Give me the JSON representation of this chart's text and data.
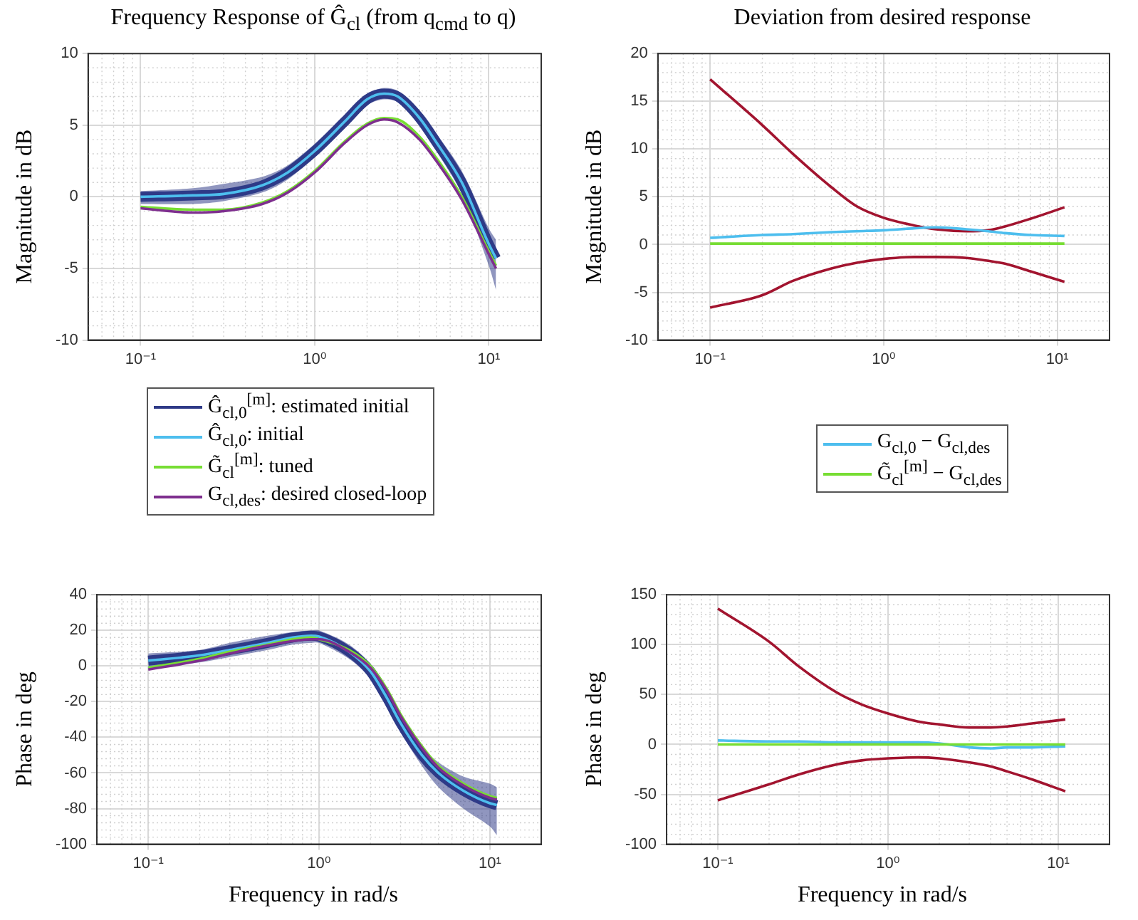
{
  "chart_data": [
    {
      "type": "line",
      "title": "Frequency Response of Ĝ$_{cl}$ (from q$_{cmd}$ to q)",
      "ylabel": "Magnitude in dB",
      "log": "x",
      "grid": true,
      "legend": "bottom",
      "xlim": [
        0.05,
        20
      ],
      "xticks": [
        {
          "value": 0.1,
          "label": "10⁻¹"
        },
        {
          "value": 1,
          "label": "10⁰"
        },
        {
          "value": 10,
          "label": "10¹"
        }
      ],
      "ylim": [
        -10,
        10
      ],
      "yticks": [
        -10,
        -5,
        0,
        5,
        10
      ],
      "x": [
        0.1,
        0.2,
        0.3,
        0.5,
        0.7,
        1,
        1.5,
        2,
        2.5,
        3,
        4,
        5,
        7,
        10,
        11
      ],
      "series": [
        {
          "name": "Ĝ$_{cl,0}$$^{[m]}$: estimated initial",
          "color": "#2e3a87",
          "values": [
            0,
            0.1,
            0.2,
            0.8,
            1.7,
            3.2,
            5.3,
            6.8,
            7.2,
            7,
            5.5,
            3.8,
            1,
            -3.3,
            -4.3
          ],
          "lower": [
            -0.5,
            -0.5,
            -0.3,
            0.3,
            1.2,
            2.8,
            4.9,
            6.4,
            6.8,
            6.6,
            5,
            3.2,
            0.2,
            -4.8,
            -6.5
          ],
          "upper": [
            0.4,
            0.6,
            0.9,
            1.4,
            2.2,
            3.7,
            5.7,
            7.2,
            7.6,
            7.4,
            6,
            4.4,
            1.8,
            -2.2,
            -3
          ]
        },
        {
          "name": "Ĝ$_{cl,0}$: initial",
          "color": "#4dbeee",
          "values": [
            0,
            0.1,
            0.2,
            0.8,
            1.7,
            3.2,
            5.3,
            6.8,
            7.2,
            7,
            5.5,
            3.8,
            1,
            -3.3,
            -4.3
          ]
        },
        {
          "name": "G̃$_{cl}$$^{[m]}$: tuned",
          "color": "#77dd33",
          "values": [
            -0.7,
            -0.9,
            -0.9,
            -0.4,
            0.4,
            1.8,
            3.9,
            5.1,
            5.5,
            5.4,
            4.2,
            2.7,
            0,
            -3.8,
            -4.8
          ]
        },
        {
          "name": "G$_{cl,des}$: desired closed-loop",
          "color": "#7e2f8e",
          "values": [
            -0.8,
            -1.1,
            -1,
            -0.5,
            0.3,
            1.7,
            3.8,
            5,
            5.4,
            5.2,
            4,
            2.5,
            -0.2,
            -4,
            -5
          ]
        }
      ]
    },
    {
      "type": "line",
      "title": "Deviation from desired response",
      "ylabel": "Magnitude in dB",
      "log": "x",
      "grid": true,
      "legend": "bottom",
      "xlim": [
        0.05,
        20
      ],
      "xticks": [
        {
          "value": 0.1,
          "label": "10⁻¹"
        },
        {
          "value": 1,
          "label": "10⁰"
        },
        {
          "value": 10,
          "label": "10¹"
        }
      ],
      "ylim": [
        -10,
        20
      ],
      "yticks": [
        -10,
        -5,
        0,
        5,
        10,
        15,
        20
      ],
      "x": [
        0.1,
        0.2,
        0.3,
        0.5,
        0.7,
        1,
        1.5,
        2,
        3,
        4,
        5,
        7,
        11
      ],
      "series": [
        {
          "color": "#a2142f",
          "values": [
            17.3,
            12.5,
            9.5,
            6,
            4,
            2.8,
            2,
            1.6,
            1.4,
            1.5,
            1.9,
            2.7,
            3.9
          ]
        },
        {
          "color": "#a2142f",
          "values": [
            -6.6,
            -5.3,
            -3.8,
            -2.5,
            -1.9,
            -1.5,
            -1.3,
            -1.3,
            -1.4,
            -1.7,
            -2,
            -2.8,
            -3.9
          ]
        },
        {
          "name": "G$_{cl,0}$ − G$_{cl,des}$",
          "color": "#4dbeee",
          "values": [
            0.7,
            1,
            1.1,
            1.3,
            1.4,
            1.5,
            1.7,
            1.8,
            1.6,
            1.4,
            1.2,
            1,
            0.9
          ]
        },
        {
          "name": "G̃$_{cl}$$^{[m]}$ − G$_{cl,des}$",
          "color": "#77dd33",
          "values": [
            0.1,
            0.1,
            0.1,
            0.1,
            0.1,
            0.1,
            0.1,
            0.1,
            0.1,
            0.1,
            0.1,
            0.1,
            0.1
          ]
        }
      ]
    },
    {
      "type": "line",
      "xlabel": "Frequency in rad/s",
      "ylabel": "Phase in deg",
      "log": "x",
      "grid": true,
      "xlim": [
        0.05,
        20
      ],
      "xticks": [
        {
          "value": 0.1,
          "label": "10⁻¹"
        },
        {
          "value": 1,
          "label": "10⁰"
        },
        {
          "value": 10,
          "label": "10¹"
        }
      ],
      "ylim": [
        -100,
        40
      ],
      "yticks": [
        -100,
        -80,
        -60,
        -40,
        -20,
        0,
        20,
        40
      ],
      "x": [
        0.1,
        0.2,
        0.3,
        0.5,
        0.7,
        0.9,
        1,
        1.5,
        2,
        2.5,
        3,
        4,
        5,
        7,
        10,
        11
      ],
      "series": [
        {
          "color": "#2e3a87",
          "values": [
            3,
            6,
            9,
            13,
            16,
            17,
            16.5,
            8,
            -3,
            -18,
            -32,
            -50,
            -60,
            -70,
            -77,
            -78
          ],
          "lower": [
            -1,
            2,
            5,
            9,
            12,
            13,
            13,
            4,
            -7,
            -22,
            -37,
            -56,
            -68,
            -80,
            -90,
            -95
          ],
          "upper": [
            7,
            9,
            13,
            17,
            19,
            20,
            20,
            12,
            1,
            -14,
            -28,
            -45,
            -54,
            -62,
            -66,
            -68
          ]
        },
        {
          "color": "#4dbeee",
          "values": [
            3,
            6,
            9,
            13,
            16,
            17,
            16.5,
            8,
            -3,
            -18,
            -32,
            -50,
            -60,
            -70,
            -77,
            -78
          ]
        },
        {
          "color": "#77dd33",
          "values": [
            -1,
            4,
            8,
            12,
            15,
            16,
            15,
            9,
            0,
            -13,
            -27,
            -45,
            -56,
            -66,
            -73,
            -74
          ]
        },
        {
          "color": "#7e2f8e",
          "values": [
            -2,
            3,
            7,
            11.5,
            14,
            15,
            15,
            8,
            -1,
            -14,
            -28,
            -46,
            -57,
            -67,
            -74,
            -75
          ]
        }
      ]
    },
    {
      "type": "line",
      "xlabel": "Frequency in rad/s",
      "ylabel": "Phase in deg",
      "log": "x",
      "grid": true,
      "xlim": [
        0.05,
        20
      ],
      "xticks": [
        {
          "value": 0.1,
          "label": "10⁻¹"
        },
        {
          "value": 1,
          "label": "10⁰"
        },
        {
          "value": 10,
          "label": "10¹"
        }
      ],
      "ylim": [
        -100,
        150
      ],
      "yticks": [
        -100,
        -50,
        0,
        50,
        100,
        150
      ],
      "x": [
        0.1,
        0.2,
        0.3,
        0.5,
        0.7,
        1,
        1.5,
        2,
        3,
        4,
        5,
        7,
        11
      ],
      "series": [
        {
          "color": "#a2142f",
          "values": [
            136,
            103,
            78,
            52,
            40,
            31,
            23,
            20,
            17,
            17,
            18,
            21,
            25
          ]
        },
        {
          "color": "#a2142f",
          "values": [
            -56,
            -40,
            -30,
            -20,
            -16,
            -14,
            -13,
            -14,
            -18,
            -22,
            -27,
            -35,
            -47
          ]
        },
        {
          "color": "#4dbeee",
          "values": [
            4,
            3,
            3,
            2,
            2,
            2,
            2,
            1,
            -3,
            -4,
            -3,
            -3,
            -2
          ]
        },
        {
          "color": "#77dd33",
          "values": [
            0,
            0,
            0,
            0,
            0,
            0,
            0,
            0,
            0,
            0,
            0,
            0,
            0
          ]
        }
      ]
    }
  ]
}
